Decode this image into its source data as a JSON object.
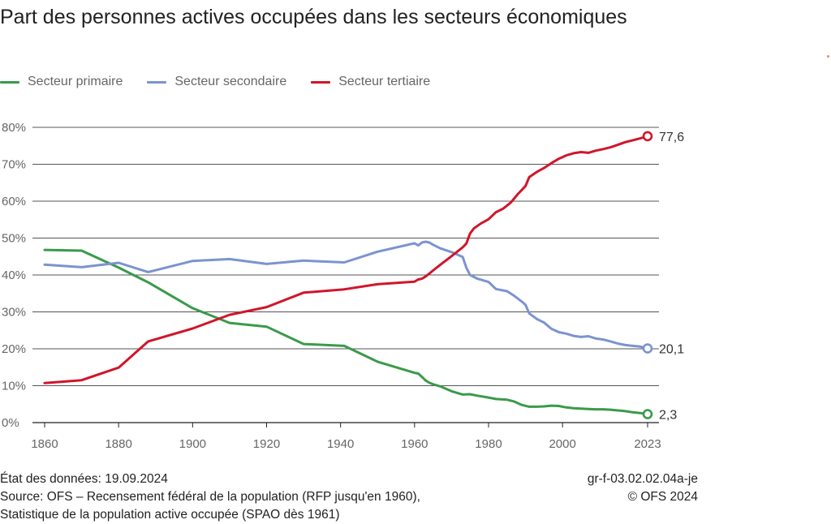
{
  "title": "Part des personnes actives occupées dans les secteurs économiques",
  "footer": {
    "status": "État des données: 19.09.2024",
    "source_line1": "Source: OFS – Recensement fédéral de la population (RFP jusqu'en 1960),",
    "source_line2": "Statistique de la population active occupée (SPAO dès 1961)",
    "code": "gr-f-03.02.02.04a-je",
    "copyright": "© OFS 2024"
  },
  "chart_data": {
    "type": "line",
    "title": "Part des personnes actives occupées dans les secteurs économiques",
    "xlabel": "",
    "ylabel": "",
    "xlim": [
      1860,
      2023
    ],
    "ylim": [
      0,
      80
    ],
    "x_ticks": [
      "1860",
      "1880",
      "1900",
      "1920",
      "1940",
      "1960",
      "1980",
      "2000",
      "2023"
    ],
    "x_tick_values": [
      1860,
      1880,
      1900,
      1920,
      1940,
      1960,
      1980,
      2000,
      2023
    ],
    "y_ticks": [
      "0%",
      "10%",
      "20%",
      "30%",
      "40%",
      "50%",
      "60%",
      "70%",
      "80%"
    ],
    "y_tick_values": [
      0,
      10,
      20,
      30,
      40,
      50,
      60,
      70,
      80
    ],
    "grid": true,
    "legend_position": "top-left",
    "series": [
      {
        "name": "Secteur primaire",
        "color": "#3a9a4a",
        "end_label": "2,3",
        "points": [
          [
            1860,
            46.8
          ],
          [
            1870,
            46.6
          ],
          [
            1880,
            42.0
          ],
          [
            1888,
            38.0
          ],
          [
            1900,
            31.0
          ],
          [
            1910,
            27.0
          ],
          [
            1920,
            26.0
          ],
          [
            1930,
            21.3
          ],
          [
            1941,
            20.8
          ],
          [
            1950,
            16.5
          ],
          [
            1960,
            13.5
          ],
          [
            1961,
            13.3
          ],
          [
            1962,
            12.4
          ],
          [
            1963,
            11.4
          ],
          [
            1964,
            10.8
          ],
          [
            1965,
            10.4
          ],
          [
            1967,
            9.8
          ],
          [
            1970,
            8.5
          ],
          [
            1973,
            7.6
          ],
          [
            1975,
            7.7
          ],
          [
            1977,
            7.3
          ],
          [
            1980,
            6.8
          ],
          [
            1982,
            6.4
          ],
          [
            1985,
            6.2
          ],
          [
            1987,
            5.7
          ],
          [
            1989,
            4.8
          ],
          [
            1991,
            4.3
          ],
          [
            1993,
            4.3
          ],
          [
            1995,
            4.4
          ],
          [
            1997,
            4.6
          ],
          [
            1999,
            4.5
          ],
          [
            2001,
            4.1
          ],
          [
            2003,
            3.9
          ],
          [
            2005,
            3.8
          ],
          [
            2007,
            3.7
          ],
          [
            2009,
            3.6
          ],
          [
            2011,
            3.6
          ],
          [
            2013,
            3.5
          ],
          [
            2015,
            3.3
          ],
          [
            2017,
            3.1
          ],
          [
            2019,
            2.8
          ],
          [
            2021,
            2.6
          ],
          [
            2023,
            2.3
          ]
        ]
      },
      {
        "name": "Secteur secondaire",
        "color": "#7b93d0",
        "end_label": "20,1",
        "points": [
          [
            1860,
            42.8
          ],
          [
            1870,
            42.1
          ],
          [
            1880,
            43.3
          ],
          [
            1888,
            40.8
          ],
          [
            1900,
            43.8
          ],
          [
            1910,
            44.3
          ],
          [
            1920,
            43.0
          ],
          [
            1930,
            43.9
          ],
          [
            1941,
            43.4
          ],
          [
            1950,
            46.3
          ],
          [
            1960,
            48.6
          ],
          [
            1961,
            48.0
          ],
          [
            1962,
            48.8
          ],
          [
            1963,
            49.0
          ],
          [
            1964,
            48.8
          ],
          [
            1965,
            48.2
          ],
          [
            1967,
            47.2
          ],
          [
            1970,
            46.2
          ],
          [
            1973,
            44.9
          ],
          [
            1974,
            42.0
          ],
          [
            1975,
            40.0
          ],
          [
            1977,
            39.0
          ],
          [
            1980,
            38.1
          ],
          [
            1982,
            36.2
          ],
          [
            1985,
            35.6
          ],
          [
            1987,
            34.3
          ],
          [
            1989,
            32.8
          ],
          [
            1990,
            31.9
          ],
          [
            1991,
            29.6
          ],
          [
            1993,
            28.1
          ],
          [
            1995,
            27.1
          ],
          [
            1997,
            25.4
          ],
          [
            1999,
            24.5
          ],
          [
            2001,
            24.1
          ],
          [
            2003,
            23.5
          ],
          [
            2005,
            23.2
          ],
          [
            2007,
            23.4
          ],
          [
            2009,
            22.8
          ],
          [
            2011,
            22.5
          ],
          [
            2013,
            22.0
          ],
          [
            2015,
            21.4
          ],
          [
            2017,
            21.0
          ],
          [
            2019,
            20.8
          ],
          [
            2021,
            20.6
          ],
          [
            2023,
            20.1
          ]
        ]
      },
      {
        "name": "Secteur tertiaire",
        "color": "#d1152a",
        "end_label": "77,6",
        "points": [
          [
            1860,
            10.7
          ],
          [
            1870,
            11.5
          ],
          [
            1880,
            14.9
          ],
          [
            1888,
            22.0
          ],
          [
            1900,
            25.5
          ],
          [
            1910,
            29.2
          ],
          [
            1920,
            31.3
          ],
          [
            1930,
            35.2
          ],
          [
            1941,
            36.1
          ],
          [
            1950,
            37.5
          ],
          [
            1960,
            38.2
          ],
          [
            1961,
            38.8
          ],
          [
            1962,
            39.0
          ],
          [
            1963,
            39.6
          ],
          [
            1964,
            40.4
          ],
          [
            1965,
            41.2
          ],
          [
            1967,
            42.8
          ],
          [
            1970,
            45.1
          ],
          [
            1973,
            47.5
          ],
          [
            1974,
            48.5
          ],
          [
            1975,
            51.2
          ],
          [
            1976,
            52.6
          ],
          [
            1978,
            54.0
          ],
          [
            1980,
            55.1
          ],
          [
            1982,
            57.0
          ],
          [
            1984,
            58.0
          ],
          [
            1986,
            59.6
          ],
          [
            1988,
            62.0
          ],
          [
            1990,
            64.1
          ],
          [
            1991,
            66.5
          ],
          [
            1993,
            67.9
          ],
          [
            1995,
            69.0
          ],
          [
            1997,
            70.3
          ],
          [
            1999,
            71.5
          ],
          [
            2001,
            72.4
          ],
          [
            2003,
            73.0
          ],
          [
            2005,
            73.3
          ],
          [
            2007,
            73.1
          ],
          [
            2009,
            73.7
          ],
          [
            2011,
            74.1
          ],
          [
            2013,
            74.6
          ],
          [
            2015,
            75.3
          ],
          [
            2017,
            76.0
          ],
          [
            2019,
            76.5
          ],
          [
            2021,
            77.0
          ],
          [
            2023,
            77.6
          ]
        ]
      }
    ]
  }
}
